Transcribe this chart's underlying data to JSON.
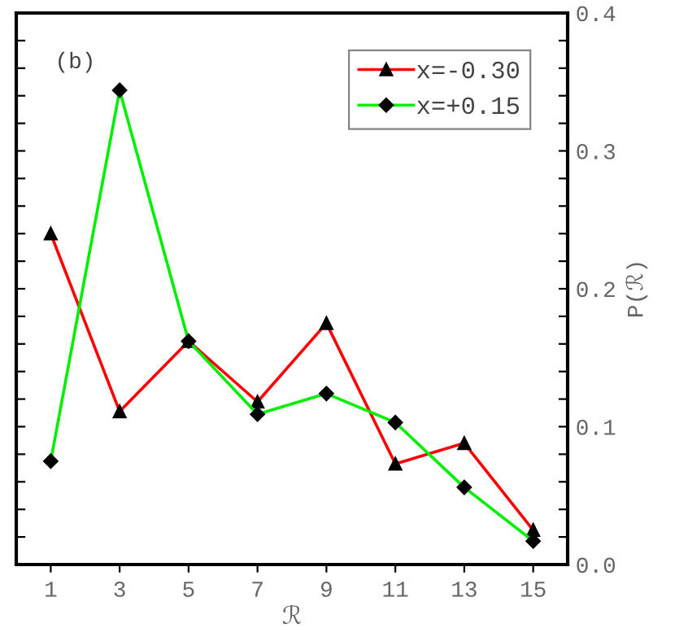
{
  "chart_data": {
    "type": "line",
    "xlabel": "ℛ",
    "ylabel": "P(ℛ)",
    "annotations": [
      "(b)"
    ],
    "x": [
      1,
      3,
      5,
      7,
      9,
      11,
      13,
      15
    ],
    "series": [
      {
        "name": "x=-0.30",
        "color": "#ff0000",
        "marker": "triangle",
        "values": [
          0.24,
          0.111,
          0.162,
          0.118,
          0.175,
          0.073,
          0.088,
          0.025
        ]
      },
      {
        "name": "x=+0.15",
        "color": "#00ee00",
        "marker": "diamond",
        "values": [
          0.075,
          0.344,
          0.162,
          0.109,
          0.124,
          0.103,
          0.056,
          0.017
        ]
      }
    ],
    "xlim": [
      0,
      16
    ],
    "xticks": [
      1,
      3,
      5,
      7,
      9,
      11,
      13,
      15
    ],
    "ylim": [
      0,
      0.4
    ],
    "yticks": [
      {
        "value": 0,
        "label": "0.0"
      },
      {
        "value": 0.02,
        "label": null
      },
      {
        "value": 0.04,
        "label": null
      },
      {
        "value": 0.06,
        "label": null
      },
      {
        "value": 0.08,
        "label": null
      },
      {
        "value": 0.1,
        "label": "0.1"
      },
      {
        "value": 0.12,
        "label": null
      },
      {
        "value": 0.14,
        "label": null
      },
      {
        "value": 0.16,
        "label": null
      },
      {
        "value": 0.18,
        "label": null
      },
      {
        "value": 0.2,
        "label": "0.2"
      },
      {
        "value": 0.22,
        "label": null
      },
      {
        "value": 0.24,
        "label": null
      },
      {
        "value": 0.26,
        "label": null
      },
      {
        "value": 0.28,
        "label": null
      },
      {
        "value": 0.3,
        "label": "0.3"
      },
      {
        "value": 0.32,
        "label": null
      },
      {
        "value": 0.34,
        "label": null
      },
      {
        "value": 0.36,
        "label": null
      },
      {
        "value": 0.38,
        "label": null
      },
      {
        "value": 0.4,
        "label": "0.4"
      }
    ],
    "grid": false,
    "legend": "top right",
    "line_style": "solid"
  }
}
